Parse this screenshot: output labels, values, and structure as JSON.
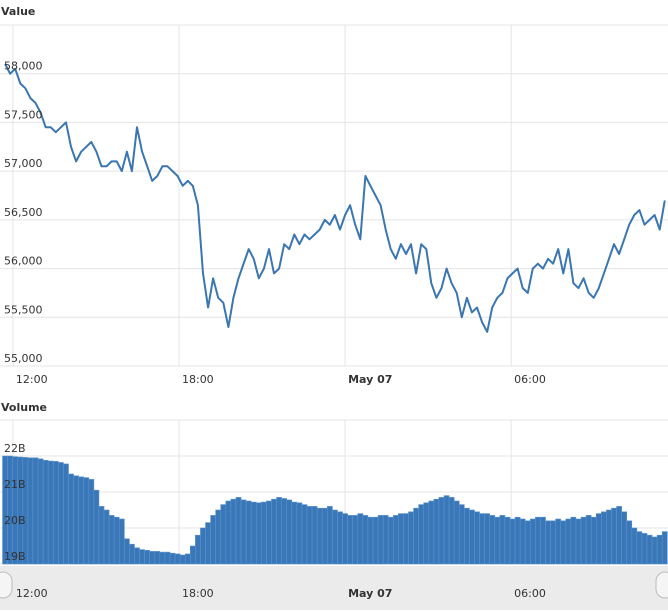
{
  "chart_data": [
    {
      "type": "line",
      "title": "Value",
      "color": "#3a76b0",
      "grid": true,
      "x": [
        -17,
        -6,
        5,
        16,
        27,
        38,
        49,
        60,
        71,
        82,
        93,
        104,
        115,
        126,
        137,
        148,
        159,
        170,
        181,
        192,
        203,
        214,
        225,
        236,
        247,
        258,
        269,
        280,
        291,
        302,
        313,
        324,
        335,
        346,
        357,
        368,
        379,
        390,
        401,
        412,
        423,
        434,
        445,
        456,
        467,
        478,
        489,
        500,
        511,
        522,
        533,
        544,
        555,
        566,
        577,
        588,
        599,
        610,
        621,
        632,
        643,
        654,
        665,
        676,
        687,
        698,
        709,
        720,
        731,
        742,
        753,
        764,
        775,
        786,
        797,
        808,
        819,
        830,
        841,
        852,
        863,
        874,
        885,
        896,
        907,
        918,
        929,
        940,
        951,
        962,
        973,
        984,
        995,
        1006,
        1017,
        1028,
        1039,
        1050,
        1061,
        1072,
        1083,
        1094,
        1105,
        1116,
        1127,
        1138,
        1149,
        1160,
        1171,
        1182,
        1193,
        1204,
        1215,
        1226,
        1237,
        1248,
        1259,
        1270,
        1281,
        1292,
        1303,
        1314,
        1325,
        1336,
        1347,
        1358,
        1369,
        1380,
        1391,
        1402,
        1413
      ],
      "values": [
        58100,
        58000,
        58050,
        57900,
        57850,
        57750,
        57700,
        57600,
        57450,
        57450,
        57400,
        57450,
        57500,
        57250,
        57100,
        57200,
        57250,
        57300,
        57200,
        57050,
        57050,
        57100,
        57100,
        57000,
        57200,
        57000,
        57450,
        57200,
        57050,
        56900,
        56950,
        57050,
        57050,
        57000,
        56950,
        56850,
        56900,
        56850,
        56650,
        55950,
        55600,
        55900,
        55700,
        55650,
        55400,
        55700,
        55900,
        56050,
        56200,
        56100,
        55900,
        56000,
        56200,
        55950,
        56000,
        56250,
        56200,
        56350,
        56250,
        56350,
        56300,
        56350,
        56400,
        56500,
        56450,
        56550,
        56400,
        56550,
        56650,
        56450,
        56300,
        56950,
        56850,
        56750,
        56650,
        56400,
        56200,
        56100,
        56250,
        56150,
        56250,
        55950,
        56250,
        56200,
        55850,
        55700,
        55800,
        56000,
        55850,
        55750,
        55500,
        55700,
        55550,
        55600,
        55450,
        55350,
        55600,
        55700,
        55750,
        55900,
        55950,
        56000,
        55800,
        55750,
        56000,
        56050,
        56000,
        56100,
        56050,
        56200,
        55950,
        56200,
        55850,
        55800,
        55900,
        55750,
        55700,
        55800,
        55950,
        56100,
        56250,
        56150,
        56300,
        56450,
        56550,
        56600,
        56450,
        56500,
        56550,
        56400,
        56700
      ],
      "xlim": [
        -28,
        1420
      ],
      "xticks": [
        {
          "value": 0,
          "label": "12:00"
        },
        {
          "value": 360,
          "label": "18:00"
        },
        {
          "value": 720,
          "label": "May 07"
        },
        {
          "value": 1080,
          "label": "06:00"
        }
      ],
      "ylim": [
        55000,
        58500
      ],
      "yticks": [
        {
          "value": 55000,
          "label": "55,000"
        },
        {
          "value": 55500,
          "label": "55,500"
        },
        {
          "value": 56000,
          "label": "56,000"
        },
        {
          "value": 56500,
          "label": "56,500"
        },
        {
          "value": 57000,
          "label": "57,000"
        },
        {
          "value": 57500,
          "label": "57,500"
        },
        {
          "value": 58000,
          "label": "58,000"
        }
      ]
    },
    {
      "type": "bar",
      "title": "Volume",
      "color": "#3977b8",
      "grid": true,
      "x": [
        -17,
        -6,
        5,
        16,
        27,
        38,
        49,
        60,
        71,
        82,
        93,
        104,
        115,
        126,
        137,
        148,
        159,
        170,
        181,
        192,
        203,
        214,
        225,
        236,
        247,
        258,
        269,
        280,
        291,
        302,
        313,
        324,
        335,
        346,
        357,
        368,
        379,
        390,
        401,
        412,
        423,
        434,
        445,
        456,
        467,
        478,
        489,
        500,
        511,
        522,
        533,
        544,
        555,
        566,
        577,
        588,
        599,
        610,
        621,
        632,
        643,
        654,
        665,
        676,
        687,
        698,
        709,
        720,
        731,
        742,
        753,
        764,
        775,
        786,
        797,
        808,
        819,
        830,
        841,
        852,
        863,
        874,
        885,
        896,
        907,
        918,
        929,
        940,
        951,
        962,
        973,
        984,
        995,
        1006,
        1017,
        1028,
        1039,
        1050,
        1061,
        1072,
        1083,
        1094,
        1105,
        1116,
        1127,
        1138,
        1149,
        1160,
        1171,
        1182,
        1193,
        1204,
        1215,
        1226,
        1237,
        1248,
        1259,
        1270,
        1281,
        1292,
        1303,
        1314,
        1325,
        1336,
        1347,
        1358,
        1369,
        1380,
        1391,
        1402,
        1413
      ],
      "values": [
        22.0,
        22.0,
        21.98,
        21.97,
        21.96,
        21.95,
        21.95,
        21.92,
        21.88,
        21.86,
        21.85,
        21.82,
        21.78,
        21.5,
        21.45,
        21.42,
        21.4,
        21.35,
        21.05,
        20.6,
        20.5,
        20.35,
        20.3,
        20.25,
        19.7,
        19.55,
        19.45,
        19.4,
        19.38,
        19.35,
        19.35,
        19.33,
        19.33,
        19.3,
        19.28,
        19.25,
        19.28,
        19.5,
        19.8,
        20.0,
        20.15,
        20.35,
        20.5,
        20.65,
        20.75,
        20.8,
        20.85,
        20.78,
        20.75,
        20.72,
        20.7,
        20.72,
        20.75,
        20.8,
        20.85,
        20.82,
        20.78,
        20.72,
        20.7,
        20.65,
        20.6,
        20.6,
        20.55,
        20.55,
        20.6,
        20.5,
        20.45,
        20.4,
        20.35,
        20.35,
        20.4,
        20.35,
        20.3,
        20.3,
        20.35,
        20.35,
        20.3,
        20.35,
        20.4,
        20.4,
        20.45,
        20.55,
        20.65,
        20.7,
        20.75,
        20.8,
        20.85,
        20.9,
        20.85,
        20.75,
        20.65,
        20.55,
        20.5,
        20.45,
        20.4,
        20.4,
        20.35,
        20.3,
        20.35,
        20.3,
        20.25,
        20.3,
        20.25,
        20.2,
        20.25,
        20.3,
        20.3,
        20.2,
        20.2,
        20.25,
        20.2,
        20.25,
        20.3,
        20.25,
        20.3,
        20.35,
        20.3,
        20.4,
        20.45,
        20.5,
        20.55,
        20.6,
        20.45,
        20.2,
        20.0,
        19.9,
        19.85,
        19.8,
        19.75,
        19.8,
        19.9
      ],
      "xlim": [
        -28,
        1420
      ],
      "xticks": [
        {
          "value": 0,
          "label": "12:00"
        },
        {
          "value": 360,
          "label": "18:00"
        },
        {
          "value": 720,
          "label": "May 07"
        },
        {
          "value": 1080,
          "label": "06:00"
        }
      ],
      "ylim": [
        19,
        23
      ],
      "yticks": [
        {
          "value": 19,
          "label": "19B"
        },
        {
          "value": 20,
          "label": "20B"
        },
        {
          "value": 21,
          "label": "21B"
        },
        {
          "value": 22,
          "label": "22B"
        }
      ]
    }
  ]
}
